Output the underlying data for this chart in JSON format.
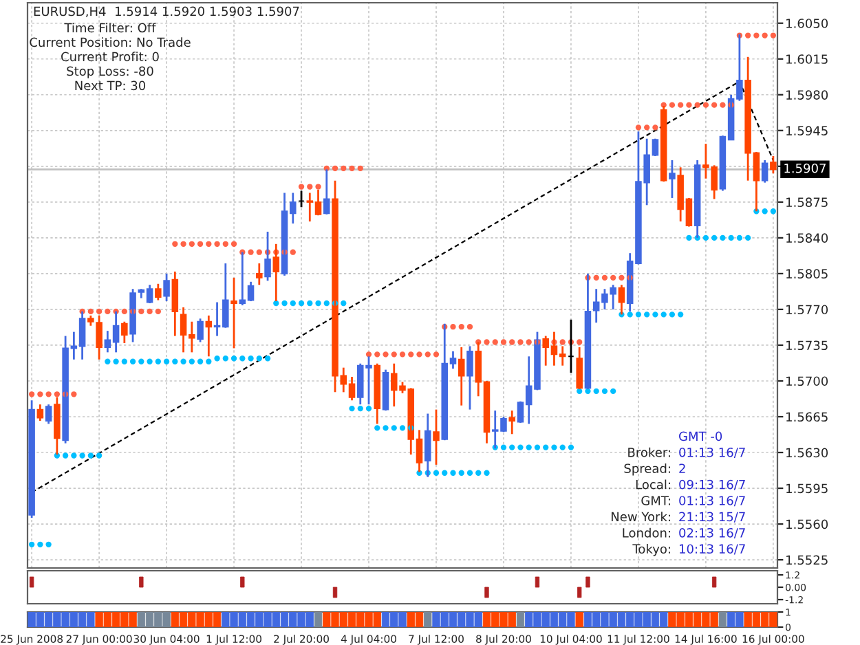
{
  "chart_data": [
    {
      "type": "candlestick",
      "title": "EURUSD,H4  1.5914 1.5920 1.5903 1.5907",
      "categories": [
        null,
        null,
        null,
        null,
        null,
        null,
        null,
        null,
        null,
        null,
        null,
        null,
        null,
        null,
        null,
        null,
        null,
        null,
        null,
        null,
        null,
        null,
        null,
        null,
        null,
        null,
        null,
        null,
        null,
        null,
        null,
        null,
        null,
        null,
        null,
        null,
        null,
        null,
        null,
        null,
        null,
        null,
        null,
        null,
        null,
        null,
        null,
        null,
        null,
        null,
        null,
        null,
        null,
        null,
        null,
        null,
        null,
        null,
        null,
        null,
        null,
        null,
        null,
        null,
        null,
        null,
        null,
        null,
        null,
        null,
        null,
        null,
        null,
        null,
        null,
        null,
        null,
        null,
        null,
        null,
        null,
        null,
        null,
        null,
        null,
        null,
        null,
        null,
        null
      ],
      "ohlc": [
        [
          1.5569,
          1.5681,
          1.5566,
          1.5672
        ],
        [
          1.5672,
          1.5677,
          1.5661,
          1.5664
        ],
        [
          1.5661,
          1.5677,
          1.5658,
          1.5675
        ],
        [
          1.5677,
          1.5684,
          1.5628,
          1.5644
        ],
        [
          1.5642,
          1.5744,
          1.5639,
          1.5732
        ],
        [
          1.5732,
          1.5748,
          1.5721,
          1.5734
        ],
        [
          1.5734,
          1.5768,
          1.5721,
          1.5761
        ],
        [
          1.5761,
          1.5764,
          1.5754,
          1.5758
        ],
        [
          1.5757,
          1.5764,
          1.5721,
          1.5733
        ],
        [
          1.5733,
          1.5749,
          1.5728,
          1.574
        ],
        [
          1.5738,
          1.5768,
          1.5728,
          1.5754
        ],
        [
          1.5756,
          1.5758,
          1.5737,
          1.5745
        ],
        [
          1.5746,
          1.579,
          1.5738,
          1.5786
        ],
        [
          1.5787,
          1.579,
          1.5781,
          1.5789
        ],
        [
          1.5777,
          1.5794,
          1.5776,
          1.579
        ],
        [
          1.579,
          1.5795,
          1.5779,
          1.5782
        ],
        [
          1.5783,
          1.5805,
          1.5778,
          1.5798
        ],
        [
          1.5799,
          1.5807,
          1.5744,
          1.5768
        ],
        [
          1.5765,
          1.5772,
          1.5728,
          1.5745
        ],
        [
          1.5745,
          1.5758,
          1.5728,
          1.5742
        ],
        [
          1.5741,
          1.5761,
          1.5738,
          1.5758
        ],
        [
          1.5758,
          1.5764,
          1.5724,
          1.5753
        ],
        [
          1.5753,
          1.5777,
          1.5744,
          1.5754
        ],
        [
          1.5753,
          1.5815,
          1.5752,
          1.5779
        ],
        [
          1.5778,
          1.5801,
          1.5732,
          1.5776
        ],
        [
          1.5776,
          1.5826,
          1.5774,
          1.5779
        ],
        [
          1.5779,
          1.5797,
          1.5778,
          1.5793
        ],
        [
          1.5805,
          1.5815,
          1.5794,
          1.5801
        ],
        [
          1.5802,
          1.5846,
          1.5798,
          1.5819
        ],
        [
          1.5821,
          1.5834,
          1.5778,
          1.5807
        ],
        [
          1.5805,
          1.5884,
          1.5803,
          1.5866
        ],
        [
          1.5864,
          1.5884,
          1.5854,
          1.5875
        ],
        [
          1.5876,
          1.5886,
          1.587,
          1.5876
        ],
        [
          1.5876,
          1.5884,
          1.5856,
          1.5875
        ],
        [
          1.5875,
          1.5887,
          1.5862,
          1.5863
        ],
        [
          1.5864,
          1.5907,
          1.5863,
          1.5878
        ],
        [
          1.5878,
          1.5896,
          1.5689,
          1.5705
        ],
        [
          1.5705,
          1.5713,
          1.5689,
          1.5697
        ],
        [
          1.5697,
          1.5704,
          1.5681,
          1.5684
        ],
        [
          1.5684,
          1.5717,
          1.5677,
          1.5715
        ],
        [
          1.5713,
          1.5724,
          1.5677,
          1.5715
        ],
        [
          1.5715,
          1.5717,
          1.5658,
          1.5673
        ],
        [
          1.5672,
          1.5711,
          1.5671,
          1.5708
        ],
        [
          1.5707,
          1.5717,
          1.5675,
          1.5691
        ],
        [
          1.5695,
          1.5699,
          1.5688,
          1.5691
        ],
        [
          1.5692,
          1.5693,
          1.5628,
          1.5643
        ],
        [
          1.5643,
          1.5652,
          1.5611,
          1.562
        ],
        [
          1.5622,
          1.5668,
          1.5606,
          1.5651
        ],
        [
          1.565,
          1.5672,
          1.5618,
          1.5642
        ],
        [
          1.5643,
          1.5756,
          1.5642,
          1.5717
        ],
        [
          1.5717,
          1.5729,
          1.5712,
          1.5722
        ],
        [
          1.5721,
          1.5733,
          1.5676,
          1.5705
        ],
        [
          1.5705,
          1.5734,
          1.5672,
          1.5729
        ],
        [
          1.5729,
          1.5738,
          1.5685,
          1.5699
        ],
        [
          1.5699,
          1.57,
          1.5639,
          1.565
        ],
        [
          1.5651,
          1.5671,
          1.5634,
          1.5652
        ],
        [
          1.5651,
          1.5665,
          1.565,
          1.5663
        ],
        [
          1.5664,
          1.5671,
          1.5648,
          1.5661
        ],
        [
          1.566,
          1.568,
          1.5659,
          1.5679
        ],
        [
          1.5677,
          1.5724,
          1.5658,
          1.5695
        ],
        [
          1.5692,
          1.5748,
          1.5691,
          1.574
        ],
        [
          1.5741,
          1.5744,
          1.5715,
          1.5733
        ],
        [
          1.5734,
          1.5748,
          1.5715,
          1.5726
        ],
        [
          1.5726,
          1.5734,
          1.5715,
          1.5724
        ],
        [
          1.5724,
          1.576,
          1.5708,
          1.5724
        ],
        [
          1.5722,
          1.5733,
          1.5692,
          1.5693
        ],
        [
          1.5693,
          1.5805,
          1.5692,
          1.5768
        ],
        [
          1.5769,
          1.579,
          1.5757,
          1.5777
        ],
        [
          1.5777,
          1.579,
          1.577,
          1.5785
        ],
        [
          1.5785,
          1.5794,
          1.577,
          1.5791
        ],
        [
          1.5791,
          1.5794,
          1.5765,
          1.5777
        ],
        [
          1.5776,
          1.5825,
          1.5768,
          1.5817
        ],
        [
          1.5815,
          1.5944,
          1.5814,
          1.5895
        ],
        [
          1.5894,
          1.5937,
          1.5872,
          1.5921
        ],
        [
          1.5921,
          1.5937,
          1.592,
          1.5936
        ],
        [
          1.5965,
          1.5969,
          1.5895,
          1.5896
        ],
        [
          1.5898,
          1.5916,
          1.5879,
          1.5903
        ],
        [
          1.5901,
          1.5909,
          1.5856,
          1.5868
        ],
        [
          1.5878,
          1.5879,
          1.5851,
          1.5852
        ],
        [
          1.5852,
          1.5916,
          1.584,
          1.5911
        ],
        [
          1.5911,
          1.5932,
          1.5898,
          1.5909
        ],
        [
          1.5909,
          1.5911,
          1.5878,
          1.5887
        ],
        [
          1.5888,
          1.594,
          1.5886,
          1.5939
        ],
        [
          1.5936,
          1.598,
          1.5936,
          1.5976
        ],
        [
          1.5976,
          1.6039,
          1.5974,
          1.5994
        ],
        [
          1.5994,
          1.6017,
          1.5896,
          1.5923
        ],
        [
          1.5923,
          1.5924,
          1.5866,
          1.5896
        ],
        [
          1.5896,
          1.5916,
          1.5894,
          1.5913
        ],
        [
          1.5914,
          1.592,
          1.5903,
          1.5907
        ]
      ],
      "colors": [
        "#4169e1",
        "#ff4500",
        "#4169e1",
        "#ff4500",
        "#4169e1",
        "#4169e1",
        "#4169e1",
        "#ff4500",
        "#ff4500",
        "#4169e1",
        "#4169e1",
        "#ff4500",
        "#4169e1",
        "#4169e1",
        "#4169e1",
        "#ff4500",
        "#4169e1",
        "#ff4500",
        "#ff4500",
        "#ff4500",
        "#4169e1",
        "#ff4500",
        "#4169e1",
        "#4169e1",
        "#ff4500",
        "#4169e1",
        "#4169e1",
        "#ff4500",
        "#4169e1",
        "#ff4500",
        "#4169e1",
        "#4169e1",
        "#000000",
        "#ff4500",
        "#ff4500",
        "#4169e1",
        "#ff4500",
        "#ff4500",
        "#ff4500",
        "#4169e1",
        "#4169e1",
        "#ff4500",
        "#4169e1",
        "#ff4500",
        "#ff4500",
        "#ff4500",
        "#ff4500",
        "#4169e1",
        "#ff4500",
        "#4169e1",
        "#4169e1",
        "#ff4500",
        "#4169e1",
        "#ff4500",
        "#ff4500",
        "#4169e1",
        "#4169e1",
        "#ff4500",
        "#4169e1",
        "#4169e1",
        "#4169e1",
        "#ff4500",
        "#ff4500",
        "#ff4500",
        "#000000",
        "#ff4500",
        "#4169e1",
        "#4169e1",
        "#4169e1",
        "#4169e1",
        "#ff4500",
        "#4169e1",
        "#4169e1",
        "#4169e1",
        "#4169e1",
        "#ff4500",
        "#4169e1",
        "#ff4500",
        "#ff4500",
        "#4169e1",
        "#ff4500",
        "#ff4500",
        "#4169e1",
        "#4169e1",
        "#4169e1",
        "#ff4500",
        "#ff4500",
        "#4169e1",
        "#ff4500"
      ],
      "series": [
        {
          "type": "scatter",
          "color": "#ff6347",
          "marker": "circle",
          "values": [
            1.5687,
            1.5687,
            1.5687,
            1.5687,
            1.5687,
            1.5687,
            1.5768,
            1.5768,
            1.5768,
            1.5768,
            1.5768,
            1.5768,
            1.5768,
            1.5768,
            1.5768,
            1.5768,
            null,
            1.5834,
            1.5834,
            1.5834,
            1.5834,
            1.5834,
            1.5834,
            1.5834,
            1.5834,
            1.5826,
            1.5826,
            1.5826,
            1.5826,
            1.5826,
            1.5826,
            1.5826,
            1.589,
            1.589,
            1.589,
            1.5908,
            1.5908,
            1.5908,
            1.5908,
            1.5908,
            1.5726,
            1.5726,
            1.5726,
            1.5726,
            1.5726,
            1.5726,
            1.5726,
            1.5726,
            1.5726,
            1.5753,
            1.5753,
            1.5753,
            1.5753,
            1.5738,
            1.5738,
            1.5738,
            1.5738,
            1.5738,
            1.5738,
            1.5738,
            1.5738,
            null,
            1.5738,
            1.5738,
            1.5738,
            1.5738,
            1.5801,
            1.5801,
            1.5801,
            1.5801,
            1.5801,
            1.5801,
            1.5948,
            1.5948,
            1.5948,
            1.597,
            1.597,
            1.597,
            1.597,
            1.597,
            1.597,
            1.597,
            1.597,
            1.597,
            1.6038,
            1.6038,
            1.6038,
            1.6038,
            1.6038
          ]
        },
        {
          "type": "scatter",
          "color": "#00bfff",
          "marker": "circle",
          "values": [
            1.554,
            1.554,
            1.554,
            1.5627,
            1.5627,
            1.5627,
            1.5627,
            1.5627,
            1.5627,
            1.5719,
            1.5719,
            1.5719,
            1.5719,
            1.5719,
            1.5719,
            1.5719,
            1.5719,
            1.5719,
            1.5719,
            1.5719,
            1.5719,
            1.5719,
            1.5722,
            1.5722,
            1.5722,
            1.5722,
            1.5722,
            1.5722,
            1.5722,
            1.5776,
            1.5776,
            1.5776,
            1.5776,
            1.5776,
            1.5776,
            1.5776,
            1.5776,
            1.5776,
            1.5673,
            1.5673,
            1.5673,
            1.5654,
            1.5654,
            1.5654,
            1.5654,
            1.5654,
            1.561,
            1.561,
            1.561,
            1.561,
            1.561,
            1.561,
            1.561,
            1.561,
            1.561,
            1.5635,
            1.5635,
            1.5635,
            1.5635,
            1.5635,
            1.5635,
            1.5635,
            1.5635,
            1.5635,
            1.5635,
            1.569,
            1.569,
            1.569,
            1.569,
            1.569,
            1.5765,
            1.5765,
            1.5765,
            1.5765,
            1.5765,
            1.5765,
            1.5765,
            1.5765,
            1.584,
            1.584,
            1.584,
            1.584,
            1.584,
            1.584,
            1.584,
            1.584,
            1.5866,
            1.5866,
            1.5866
          ]
        },
        {
          "type": "line",
          "color": "#000000",
          "line_style": "dashed",
          "values": [
            1.5591,
            null,
            null,
            null,
            null,
            null,
            null,
            null,
            null,
            null,
            null,
            null,
            null,
            null,
            null,
            null,
            null,
            null,
            null,
            null,
            null,
            null,
            null,
            null,
            null,
            null,
            null,
            null,
            null,
            null,
            null,
            null,
            null,
            null,
            null,
            null,
            null,
            null,
            null,
            null,
            null,
            null,
            null,
            null,
            null,
            null,
            null,
            null,
            null,
            null,
            null,
            null,
            null,
            null,
            null,
            null,
            null,
            null,
            null,
            null,
            null,
            null,
            null,
            null,
            null,
            null,
            null,
            null,
            null,
            null,
            null,
            null,
            null,
            null,
            null,
            null,
            null,
            null,
            null,
            null,
            null,
            null,
            null,
            null,
            1.5993,
            null,
            null,
            null,
            1.5916
          ]
        }
      ],
      "ref_lines": [
        {
          "axis": "y",
          "value": 1.5907,
          "label": "1.5907",
          "color": "#c0c0c0"
        }
      ],
      "ylim": [
        1.5517,
        1.607
      ],
      "yticks": [
        1.5525,
        {
          "value": 1.556,
          "label": "1.5560"
        },
        1.5595,
        {
          "value": 1.563,
          "label": "1.5630"
        },
        1.5665,
        {
          "value": 1.57,
          "label": "1.5700"
        },
        1.5735,
        {
          "value": 1.577,
          "label": "1.5770"
        },
        1.5805,
        {
          "value": 1.584,
          "label": "1.5840"
        },
        1.5875,
        {
          "value": 1.591,
          "label": null
        },
        1.5945,
        {
          "value": 1.598,
          "label": "1.5980"
        },
        1.6015,
        {
          "value": 1.605,
          "label": "1.6050"
        }
      ],
      "grid": true,
      "tick_labels": "y",
      "annotations": [
        "Time Filter: Off",
        "Current Position: No Trade",
        "Current Profit: 0",
        "Stop Loss: -80",
        "Next TP: 30",
        "GMT -0",
        "Broker: 01:13 16/7",
        "Spread: 2",
        "Local: 09:13 16/7",
        "GMT: 01:13 16/7",
        "New York: 21:13 15/7",
        "London: 02:13 16/7",
        "Tokyo: 10:13 16/7"
      ]
    },
    {
      "type": "bar",
      "categories": [
        null,
        null,
        null,
        null,
        null,
        null,
        null,
        null,
        null,
        null,
        null,
        null,
        null,
        null,
        null,
        null,
        null,
        null,
        null,
        null,
        null,
        null,
        null,
        null,
        null,
        null,
        null,
        null,
        null,
        null,
        null,
        null,
        null,
        null,
        null,
        null,
        null,
        null,
        null,
        null,
        null,
        null,
        null,
        null,
        null,
        null,
        null,
        null,
        null,
        null,
        null,
        null,
        null,
        null,
        null,
        null,
        null,
        null,
        null,
        null,
        null,
        null,
        null,
        null,
        null,
        null,
        null,
        null,
        null,
        null,
        null,
        null,
        null,
        null,
        null,
        null,
        null,
        null,
        null,
        null,
        null,
        null,
        null,
        null,
        null,
        null,
        null,
        null,
        null
      ],
      "series": [
        {
          "color": "#b22222",
          "values": [
            1,
            null,
            null,
            null,
            null,
            null,
            null,
            null,
            null,
            null,
            null,
            null,
            null,
            1,
            null,
            null,
            null,
            null,
            null,
            null,
            null,
            null,
            null,
            null,
            null,
            1,
            null,
            null,
            null,
            null,
            null,
            null,
            null,
            null,
            null,
            null,
            -1,
            null,
            null,
            null,
            null,
            null,
            null,
            null,
            null,
            null,
            null,
            null,
            null,
            null,
            null,
            null,
            null,
            null,
            -1,
            null,
            null,
            null,
            null,
            null,
            1,
            null,
            null,
            null,
            null,
            -1,
            1,
            null,
            null,
            null,
            null,
            null,
            null,
            null,
            null,
            null,
            null,
            null,
            null,
            null,
            null,
            1,
            null,
            null,
            null,
            null,
            null,
            null,
            null
          ]
        }
      ],
      "ylim": [
        -1.6,
        1.6
      ],
      "yticks": [
        {
          "value": 1.2,
          "label": "1.2"
        },
        {
          "value": 0,
          "label": "0.00"
        },
        {
          "value": -1.2,
          "label": "-1.2"
        }
      ],
      "tick_labels": "y"
    },
    {
      "type": "bar",
      "categories": [
        "25 Jun 2008",
        null,
        null,
        null,
        null,
        null,
        null,
        null,
        "27 Jun 00:00",
        null,
        null,
        null,
        null,
        null,
        null,
        null,
        "30 Jun 04:00",
        null,
        null,
        null,
        null,
        null,
        null,
        null,
        "1 Jul 12:00",
        null,
        null,
        null,
        null,
        null,
        null,
        null,
        "2 Jul 20:00",
        null,
        null,
        null,
        null,
        null,
        null,
        null,
        "4 Jul 04:00",
        null,
        null,
        null,
        null,
        null,
        null,
        null,
        "7 Jul 12:00",
        null,
        null,
        null,
        null,
        null,
        null,
        null,
        "8 Jul 20:00",
        null,
        null,
        null,
        null,
        null,
        null,
        null,
        "10 Jul 04:00",
        null,
        null,
        null,
        null,
        null,
        null,
        null,
        "11 Jul 12:00",
        null,
        null,
        null,
        null,
        null,
        null,
        null,
        "14 Jul 16:00",
        null,
        null,
        null,
        null,
        null,
        null,
        null,
        "16 Jul 00:00"
      ],
      "values": [
        1,
        1,
        1,
        1,
        1,
        1,
        1,
        1,
        1,
        1,
        1,
        1,
        1,
        1,
        1,
        1,
        1,
        1,
        1,
        1,
        1,
        1,
        1,
        1,
        1,
        1,
        1,
        1,
        1,
        1,
        1,
        1,
        1,
        1,
        1,
        1,
        1,
        1,
        1,
        1,
        1,
        1,
        1,
        1,
        1,
        1,
        1,
        1,
        1,
        1,
        1,
        1,
        1,
        1,
        1,
        1,
        1,
        1,
        1,
        1,
        1,
        1,
        1,
        1,
        1,
        1,
        1,
        1,
        1,
        1,
        1,
        1,
        1,
        1,
        1,
        1,
        1,
        1,
        1,
        1,
        1,
        1,
        1,
        1,
        1,
        1,
        1,
        1,
        1
      ],
      "colors": [
        "#4169e1",
        "#4169e1",
        "#4169e1",
        "#4169e1",
        "#4169e1",
        "#4169e1",
        "#4169e1",
        "#4169e1",
        "#ff4500",
        "#ff4500",
        "#ff4500",
        "#ff4500",
        "#ff4500",
        "#778899",
        "#778899",
        "#778899",
        "#778899",
        "#ff4500",
        "#ff4500",
        "#ff4500",
        "#ff4500",
        "#ff4500",
        "#ff4500",
        "#4169e1",
        "#4169e1",
        "#4169e1",
        "#4169e1",
        "#4169e1",
        "#4169e1",
        "#4169e1",
        "#4169e1",
        "#4169e1",
        "#4169e1",
        "#4169e1",
        "#778899",
        "#ff4500",
        "#ff4500",
        "#ff4500",
        "#ff4500",
        "#ff4500",
        "#ff4500",
        "#ff4500",
        "#4169e1",
        "#4169e1",
        "#4169e1",
        "#ff4500",
        "#ff4500",
        "#778899",
        "#4169e1",
        "#4169e1",
        "#4169e1",
        "#4169e1",
        "#4169e1",
        "#4169e1",
        "#ff4500",
        "#ff4500",
        "#ff4500",
        "#ff4500",
        "#778899",
        "#4169e1",
        "#4169e1",
        "#4169e1",
        "#4169e1",
        "#4169e1",
        "#4169e1",
        "#ff4500",
        "#4169e1",
        "#4169e1",
        "#4169e1",
        "#4169e1",
        "#4169e1",
        "#4169e1",
        "#4169e1",
        "#4169e1",
        "#4169e1",
        "#4169e1",
        "#ff4500",
        "#ff4500",
        "#ff4500",
        "#ff4500",
        "#ff4500",
        "#ff4500",
        "#778899",
        "#4169e1",
        "#4169e1",
        "#ff4500",
        "#ff4500",
        "#ff4500",
        "#ff4500"
      ],
      "ylim": [
        0,
        1
      ],
      "yticks": [
        0,
        1
      ]
    }
  ]
}
